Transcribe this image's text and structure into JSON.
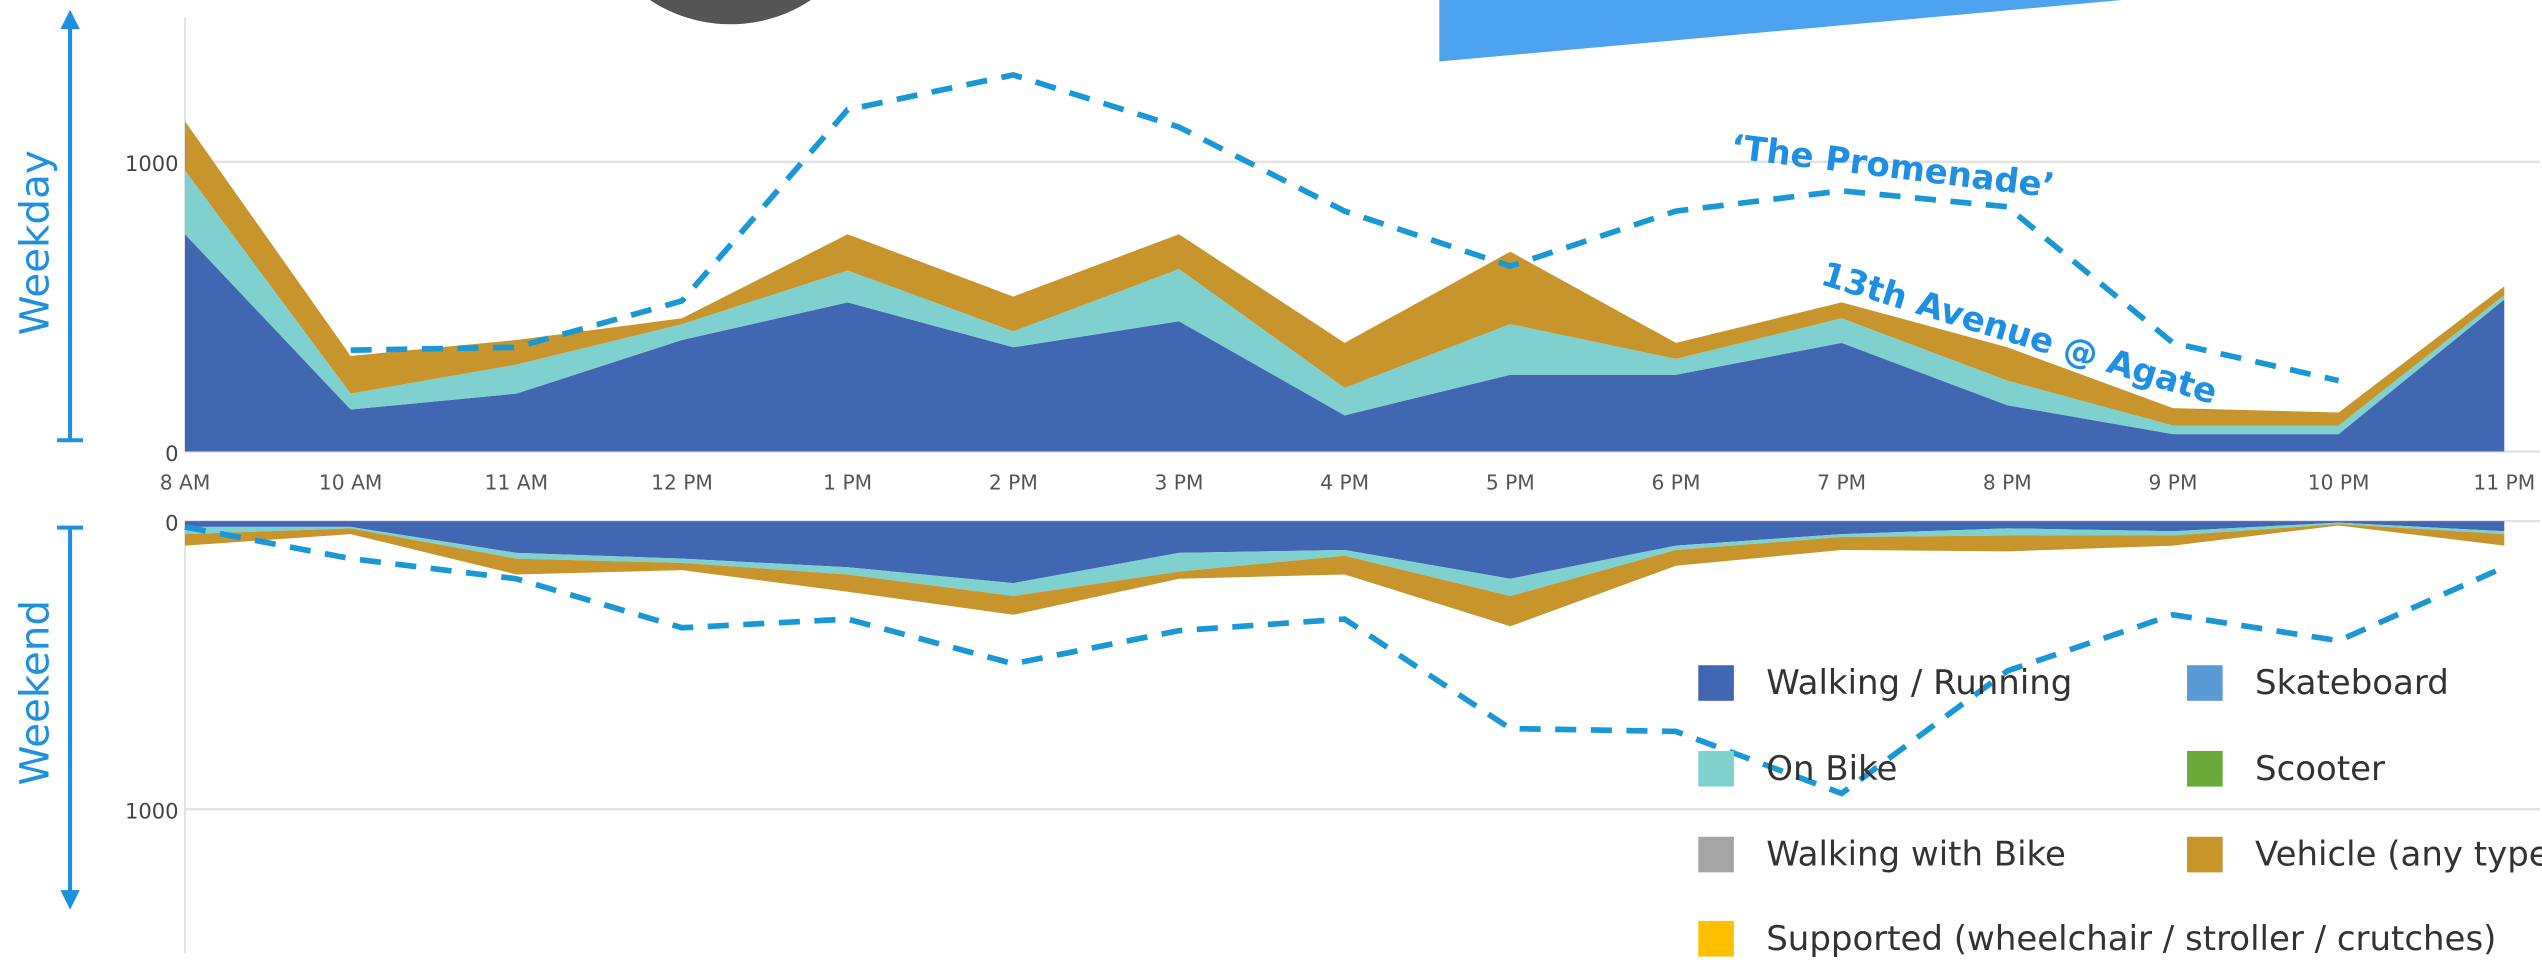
{
  "chart_data": [
    {
      "type": "area",
      "ylabel": "Weekday",
      "categories": [
        "8 AM",
        "10 AM",
        "11 AM",
        "12 PM",
        "1 PM",
        "2 PM",
        "3 PM",
        "4 PM",
        "5 PM",
        "6 PM",
        "7 PM",
        "8 PM",
        "9 PM",
        "10 PM",
        "11 PM"
      ],
      "ylim": [
        0,
        1500
      ],
      "yticks": [
        0,
        1000
      ],
      "grid": true,
      "series": [
        {
          "name": "Walking / Running",
          "color": "#4267b2",
          "values": [
            750,
            145,
            200,
            385,
            515,
            360,
            450,
            125,
            265,
            265,
            375,
            160,
            60,
            60,
            525
          ]
        },
        {
          "name": "On Bike",
          "color": "#7fd1d0",
          "values": [
            220,
            55,
            100,
            55,
            110,
            55,
            180,
            95,
            175,
            55,
            85,
            85,
            30,
            30,
            15
          ]
        },
        {
          "name": "Vehicle (any type)",
          "color": "#c8952c",
          "values": [
            170,
            130,
            85,
            20,
            125,
            120,
            120,
            155,
            250,
            55,
            55,
            115,
            60,
            45,
            30
          ]
        }
      ],
      "line": {
        "color": "#1a97d5",
        "style": "dashed",
        "values": [
          null,
          350,
          360,
          520,
          1180,
          1300,
          1120,
          830,
          640,
          830,
          900,
          845,
          375,
          245,
          null
        ]
      },
      "annotations": [
        "‘The Promenade’",
        "13th Avenue @ Agate"
      ]
    },
    {
      "type": "area",
      "ylabel": "Weekend",
      "inverted": true,
      "ylim": [
        0,
        1500
      ],
      "yticks": [
        0,
        1000
      ],
      "grid": true,
      "legend": "bottom-right",
      "series": [
        {
          "name": "Walking / Running",
          "color": "#4267b2",
          "values": [
            20,
            20,
            110,
            130,
            160,
            215,
            110,
            100,
            200,
            85,
            45,
            25,
            35,
            5,
            35
          ]
        },
        {
          "name": "Skateboard",
          "color": "#5b9bd5",
          "values": [
            0,
            0,
            0,
            0,
            0,
            0,
            0,
            0,
            0,
            0,
            0,
            0,
            0,
            0,
            0
          ]
        },
        {
          "name": "On Bike",
          "color": "#7fd1d0",
          "values": [
            25,
            5,
            20,
            15,
            25,
            45,
            65,
            20,
            60,
            15,
            10,
            25,
            15,
            5,
            10
          ]
        },
        {
          "name": "Scooter",
          "color": "#6aaa3a",
          "values": [
            0,
            0,
            0,
            0,
            0,
            0,
            0,
            0,
            0,
            0,
            0,
            0,
            0,
            0,
            0
          ]
        },
        {
          "name": "Walking with Bike",
          "color": "#a5a5a5",
          "values": [
            0,
            0,
            0,
            0,
            0,
            0,
            0,
            0,
            0,
            0,
            0,
            0,
            0,
            0,
            0
          ]
        },
        {
          "name": "Vehicle (any type)",
          "color": "#c8952c",
          "values": [
            40,
            20,
            55,
            25,
            60,
            65,
            25,
            65,
            105,
            55,
            45,
            55,
            35,
            5,
            40
          ]
        },
        {
          "name": "Supported (wheelchair / stroller / crutches)",
          "color": "#ffc000",
          "values": [
            0,
            0,
            0,
            0,
            0,
            0,
            0,
            0,
            0,
            0,
            0,
            0,
            0,
            0,
            0
          ]
        }
      ],
      "line": {
        "color": "#1a97d5",
        "style": "dashed",
        "values": [
          20,
          130,
          200,
          370,
          340,
          495,
          380,
          340,
          720,
          730,
          945,
          520,
          325,
          415,
          160
        ]
      }
    }
  ]
}
